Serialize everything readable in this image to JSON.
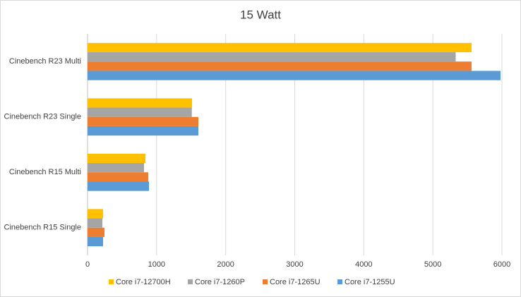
{
  "chart_data": {
    "type": "hbar",
    "title": "15 Watt",
    "categories": [
      "Cinebench R23 Multi",
      "Cinebench R23 Single",
      "Cinebench R15 Multi",
      "Cinebench R15 Single"
    ],
    "series": [
      {
        "name": "Core i7-12700H",
        "color": "#ffc000",
        "values": [
          5560,
          1513,
          838,
          225
        ]
      },
      {
        "name": "Core i7-1260P",
        "color": "#a5a5a5",
        "values": [
          5330,
          1510,
          818,
          215
        ]
      },
      {
        "name": "Core i7-1265U",
        "color": "#ed7d31",
        "values": [
          5560,
          1605,
          880,
          245
        ]
      },
      {
        "name": "Core i7-1255U",
        "color": "#5b9bd5",
        "values": [
          5980,
          1605,
          890,
          225
        ]
      }
    ],
    "xlim": [
      0,
      6000
    ],
    "xticks": [
      0,
      1000,
      2000,
      3000,
      4000,
      5000,
      6000
    ],
    "grid": true,
    "legend": "bottom"
  }
}
